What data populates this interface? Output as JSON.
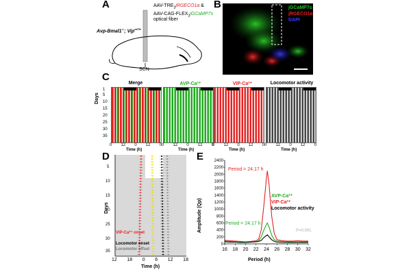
{
  "panelA": {
    "letter": "A",
    "mouse_genotype": "Avp-Bmal1",
    "mouse_genotype_sup": "-/-",
    "mouse_genotype_b": "; Vip",
    "mouse_genotype_b_sup": "wtTA",
    "virus_line1_prefix": "AAV-TRE",
    "virus_line1_sub": "2",
    "virus_line1_gene": "jRGECO1a",
    "virus_line1_suffix": " &",
    "virus_line2_prefix": "AAV-CAG-FLEX",
    "virus_line2_sub": "2",
    "virus_line2_gene": "jGCaMP7s",
    "fiber_label": "optical fiber",
    "scn_label": "SCN"
  },
  "panelB": {
    "letter": "B",
    "legend": [
      {
        "label": "jGCaMP7s",
        "color": "#22c21f"
      },
      {
        "label": "jRGECO1a",
        "color": "#e32222"
      },
      {
        "label": "DAPI",
        "color": "#3b3bff"
      }
    ]
  },
  "panelC": {
    "letter": "C",
    "titles": [
      {
        "label": "Merge",
        "color": "#000000"
      },
      {
        "label": "AVP-Ca²⁺",
        "color": "#22aa22"
      },
      {
        "label": "VIP-Ca²⁺",
        "color": "#e32222"
      },
      {
        "label": "Locomotor activity",
        "color": "#000000"
      }
    ],
    "y_label": "Days",
    "y_ticks": [
      "1",
      "5",
      "10",
      "15",
      "20",
      "25",
      "30",
      "35"
    ],
    "x_ticks": [
      "0",
      "12",
      "0",
      "12",
      "0"
    ],
    "x_label": "Time (h)"
  },
  "panelD": {
    "letter": "D",
    "y_label": "Days",
    "y_ticks": [
      "1",
      "5",
      "10",
      "15",
      "20",
      "25",
      "30",
      "35"
    ],
    "x_ticks": [
      "12",
      "18",
      "0",
      "6",
      "12",
      "18"
    ],
    "x_label": "Time (h)",
    "legend": [
      {
        "label": "VIP-Ca²⁺ onset",
        "color": "#e32222"
      },
      {
        "label": "Locomotor onset",
        "color": "#000000"
      },
      {
        "label": "Locomotor offset",
        "color": "#777777"
      }
    ]
  },
  "panelE": {
    "letter": "E",
    "y_label": "Amplitude (Qp)",
    "x_label": "Period (h)",
    "y_ticks": [
      "0",
      "200",
      "400",
      "600",
      "800",
      "1000",
      "1200",
      "1400",
      "1600",
      "1800",
      "2000",
      "2200",
      "2400"
    ],
    "x_ticks": [
      "16",
      "18",
      "20",
      "22",
      "24",
      "26",
      "28",
      "30",
      "32"
    ],
    "annotation_red": "Period = 24.17 h",
    "annotation_green": "Period = 24.17 h",
    "legend": [
      {
        "label": "AVP-Ca²⁺",
        "color": "#22aa22"
      },
      {
        "label": "VIP-Ca²⁺",
        "color": "#e32222"
      },
      {
        "label": "Locomotor activity",
        "color": "#000000"
      }
    ],
    "pvalue": "P=0.001",
    "pvalue_color": "#aaaaaa"
  },
  "chart_data": {
    "type": "line",
    "x": [
      16,
      17,
      18,
      19,
      20,
      21,
      22,
      22.5,
      23,
      23.5,
      24,
      24.17,
      24.5,
      25,
      25.5,
      26,
      27,
      28,
      29,
      30,
      31,
      32
    ],
    "series": [
      {
        "name": "VIP-Ca²⁺",
        "values": [
          100,
          90,
          80,
          70,
          60,
          70,
          90,
          140,
          400,
          1100,
          1900,
          2100,
          1700,
          800,
          300,
          120,
          90,
          80,
          80,
          90,
          80,
          80
        ]
      },
      {
        "name": "AVP-Ca²⁺",
        "values": [
          80,
          70,
          60,
          50,
          50,
          60,
          70,
          90,
          200,
          400,
          560,
          600,
          480,
          250,
          120,
          80,
          70,
          60,
          60,
          60,
          60,
          60
        ]
      },
      {
        "name": "Locomotor activity",
        "values": [
          60,
          50,
          50,
          40,
          40,
          50,
          60,
          70,
          100,
          180,
          240,
          260,
          200,
          120,
          70,
          50,
          40,
          40,
          40,
          40,
          40,
          40
        ]
      }
    ],
    "xlabel": "Period (h)",
    "ylabel": "Amplitude (Qp)",
    "xlim": [
      16,
      32
    ],
    "ylim": [
      0,
      2400
    ]
  }
}
